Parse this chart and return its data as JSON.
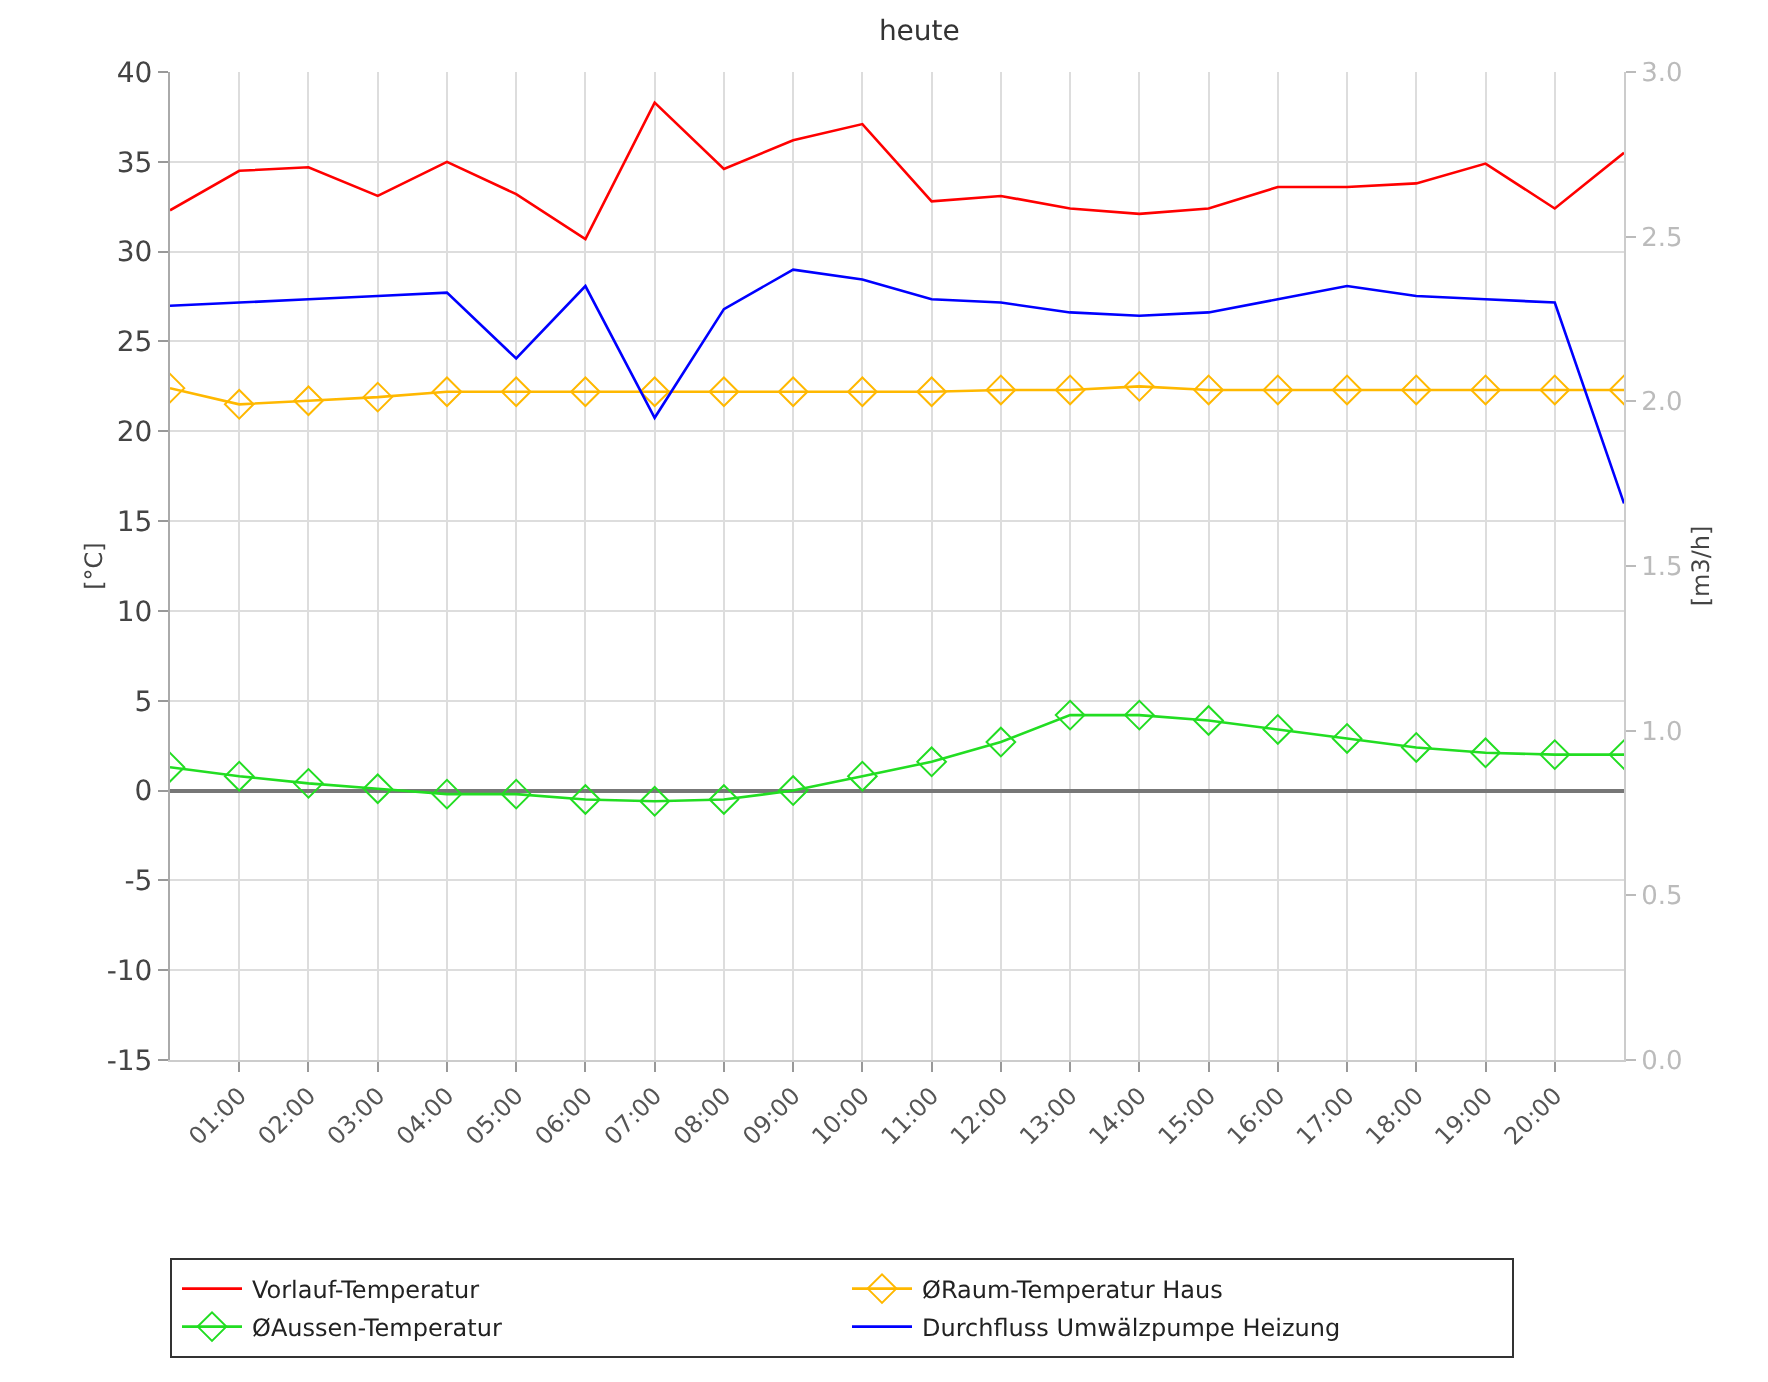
{
  "chart_data": {
    "type": "line",
    "title": "heute",
    "ylabel": "[°C]",
    "y2label": "[m3/h]",
    "x": [
      0,
      1,
      2,
      3,
      4,
      5,
      6,
      7,
      8,
      9,
      10,
      11,
      12,
      13,
      14,
      15,
      16,
      17,
      18,
      19,
      20,
      21
    ],
    "xlim": [
      0,
      21
    ],
    "xticks": [
      {
        "value": 1,
        "label": "01:00"
      },
      {
        "value": 2,
        "label": "02:00"
      },
      {
        "value": 3,
        "label": "03:00"
      },
      {
        "value": 4,
        "label": "04:00"
      },
      {
        "value": 5,
        "label": "05:00"
      },
      {
        "value": 6,
        "label": "06:00"
      },
      {
        "value": 7,
        "label": "07:00"
      },
      {
        "value": 8,
        "label": "08:00"
      },
      {
        "value": 9,
        "label": "09:00"
      },
      {
        "value": 10,
        "label": "10:00"
      },
      {
        "value": 11,
        "label": "11:00"
      },
      {
        "value": 12,
        "label": "12:00"
      },
      {
        "value": 13,
        "label": "13:00"
      },
      {
        "value": 14,
        "label": "14:00"
      },
      {
        "value": 15,
        "label": "15:00"
      },
      {
        "value": 16,
        "label": "16:00"
      },
      {
        "value": 17,
        "label": "17:00"
      },
      {
        "value": 18,
        "label": "18:00"
      },
      {
        "value": 19,
        "label": "19:00"
      },
      {
        "value": 20,
        "label": "20:00"
      }
    ],
    "ylim": [
      -15,
      40
    ],
    "yticks": [
      -15,
      -10,
      -5,
      0,
      5,
      10,
      15,
      20,
      25,
      30,
      35,
      40
    ],
    "y2lim": [
      0,
      3
    ],
    "y2ticks": [
      {
        "value": 0,
        "label": "0.0"
      },
      {
        "value": 0.5,
        "label": "0.5"
      },
      {
        "value": 1,
        "label": "1.0"
      },
      {
        "value": 1.5,
        "label": "1.5"
      },
      {
        "value": 2,
        "label": "2.0"
      },
      {
        "value": 2.5,
        "label": "2.5"
      },
      {
        "value": 3,
        "label": "3.0"
      }
    ],
    "grid": true,
    "legend": "bottom",
    "line_style": "solid",
    "series": [
      {
        "name": "Vorlauf-Temperatur",
        "color": "#ff0000",
        "marker": "none",
        "values": [
          32.3,
          34.5,
          34.7,
          33.1,
          35.0,
          33.2,
          30.7,
          38.3,
          34.6,
          36.2,
          37.1,
          32.8,
          33.1,
          32.4,
          32.1,
          32.4,
          33.6,
          33.6,
          33.8,
          34.9,
          32.4,
          35.5
        ]
      },
      {
        "name": "ØRaum-Temperatur Haus",
        "color": "#ffb800",
        "marker": "diamond",
        "values": [
          22.4,
          21.5,
          21.7,
          21.9,
          22.2,
          22.2,
          22.2,
          22.2,
          22.2,
          22.2,
          22.2,
          22.2,
          22.3,
          22.3,
          22.5,
          22.3,
          22.3,
          22.3,
          22.3,
          22.3,
          22.3,
          22.3
        ]
      },
      {
        "name": "ØAussen-Temperatur",
        "color": "#22dd22",
        "marker": "diamond",
        "values": [
          1.3,
          0.8,
          0.4,
          0.1,
          -0.2,
          -0.2,
          -0.5,
          -0.6,
          -0.5,
          0.0,
          0.8,
          1.6,
          2.7,
          4.2,
          4.2,
          3.9,
          3.4,
          2.9,
          2.4,
          2.1,
          2.0,
          2.0
        ]
      },
      {
        "name": "Durchfluss Umwälzpumpe Heizung",
        "color": "#0000ff",
        "marker": "none",
        "axis": "y2",
        "values": [
          2.29,
          2.3,
          2.31,
          2.32,
          2.33,
          2.13,
          2.35,
          1.95,
          2.28,
          2.4,
          2.37,
          2.31,
          2.3,
          2.27,
          2.26,
          2.27,
          2.31,
          2.35,
          2.32,
          2.31,
          2.3,
          1.69
        ]
      }
    ]
  }
}
